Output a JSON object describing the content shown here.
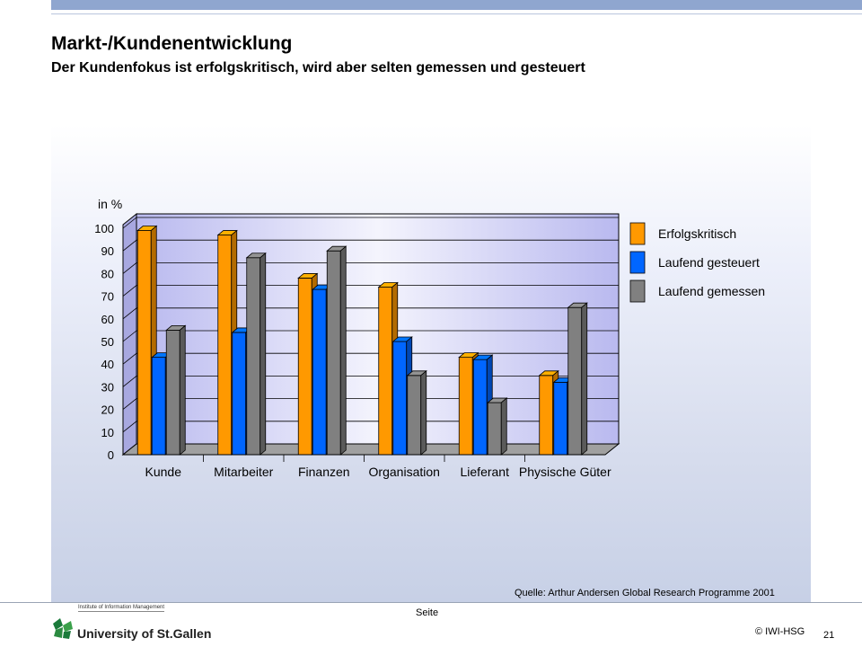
{
  "header": {
    "title": "Markt-/Kundenentwicklung",
    "subtitle": "Der Kundenfokus ist erfolgskritisch, wird aber selten gemessen und gesteuert"
  },
  "chart_data": {
    "type": "bar",
    "ylabel": "in %",
    "ylim": [
      0,
      100
    ],
    "yticks": [
      "0",
      "10",
      "20",
      "30",
      "40",
      "50",
      "60",
      "70",
      "80",
      "90",
      "100"
    ],
    "grid": true,
    "legend_position": "right",
    "categories": [
      "Kunde",
      "Mitarbeiter",
      "Finanzen",
      "Organisation",
      "Lieferant",
      "Physische Güter"
    ],
    "series": [
      {
        "name": "Erfolgskritisch",
        "color": "#ff9900",
        "values": [
          99,
          97,
          78,
          74,
          43,
          35
        ]
      },
      {
        "name": "Laufend gesteuert",
        "color": "#0066ff",
        "values": [
          43,
          54,
          73,
          50,
          42,
          32
        ]
      },
      {
        "name": "Laufend gemessen",
        "color": "#808080",
        "values": [
          55,
          87,
          90,
          35,
          23,
          65
        ]
      }
    ]
  },
  "source": "Quelle: Arthur Andersen Global Research Programme 2001",
  "footer": {
    "seite": "Seite",
    "copyright": "© IWI-HSG",
    "page_number": "21",
    "institute": "Institute of Information Management",
    "university": "University of St.Gallen"
  }
}
